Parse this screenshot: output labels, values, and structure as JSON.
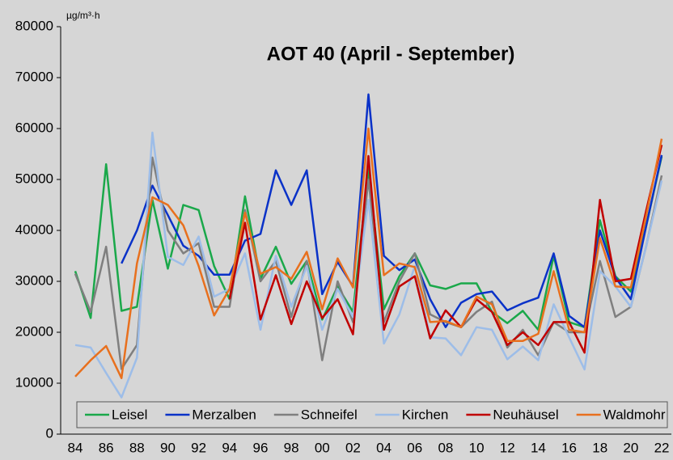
{
  "chart_data": {
    "type": "line",
    "title": "AOT 40 (April - September)",
    "y_unit": "µg/m³·h",
    "categories": [
      "84",
      null,
      "86",
      null,
      "88",
      null,
      "90",
      null,
      "92",
      null,
      "94",
      null,
      "96",
      null,
      "98",
      null,
      "00",
      null,
      "02",
      null,
      "04",
      null,
      "06",
      null,
      "08",
      null,
      "10",
      null,
      "12",
      null,
      "14",
      null,
      "16",
      null,
      "18",
      null,
      "20",
      null,
      "22"
    ],
    "ylim": [
      0,
      80000
    ],
    "yticks": [
      0,
      10000,
      20000,
      30000,
      40000,
      50000,
      60000,
      70000,
      80000
    ],
    "grid": false,
    "legend": "bottom",
    "series": [
      {
        "name": "Leisel",
        "color": "#1aa84a",
        "values": [
          32000,
          22800,
          53000,
          24200,
          25000,
          46000,
          32500,
          45000,
          44000,
          33000,
          26500,
          46700,
          30500,
          36800,
          29500,
          34000,
          22500,
          29000,
          24000,
          52000,
          24500,
          31000,
          35500,
          29200,
          28500,
          29600,
          29600,
          24000,
          21800,
          24200,
          20500,
          35000,
          22000,
          21000,
          42000,
          31000,
          28000,
          41000,
          54500
        ]
      },
      {
        "name": "Merzalben",
        "color": "#0a32c8",
        "values": [
          null,
          null,
          null,
          33500,
          40000,
          48800,
          43000,
          37000,
          35000,
          31300,
          31300,
          38000,
          39300,
          51800,
          45000,
          51800,
          27500,
          33800,
          29000,
          66700,
          35000,
          32200,
          34300,
          26500,
          21000,
          25800,
          27500,
          28000,
          24300,
          25700,
          26800,
          35500,
          23200,
          21000,
          40000,
          30800,
          26500,
          41000,
          54800
        ]
      },
      {
        "name": "Schneifel",
        "color": "#7f7f7f",
        "values": [
          31500,
          24000,
          36800,
          12800,
          17500,
          54300,
          40000,
          35500,
          37500,
          25000,
          25000,
          44000,
          30000,
          34000,
          23000,
          34000,
          14500,
          30000,
          22000,
          50000,
          22000,
          30000,
          35500,
          23500,
          22000,
          21000,
          24000,
          26000,
          17000,
          20500,
          15500,
          22000,
          20000,
          20000,
          34000,
          23000,
          25000,
          37000,
          50800
        ]
      },
      {
        "name": "Kirchen",
        "color": "#9dbde8",
        "values": [
          17500,
          17000,
          12000,
          7200,
          15000,
          59200,
          34800,
          33200,
          38800,
          27000,
          28500,
          35500,
          20500,
          35000,
          25000,
          33000,
          20500,
          28500,
          23000,
          46000,
          17800,
          23500,
          33000,
          19000,
          18800,
          15500,
          21000,
          20500,
          14700,
          17200,
          14500,
          25500,
          19000,
          12700,
          32000,
          29000,
          25000,
          37000,
          49800
        ]
      },
      {
        "name": "Neuhäusel",
        "color": "#c00000",
        "values": [
          null,
          null,
          null,
          null,
          null,
          null,
          null,
          null,
          null,
          null,
          26500,
          41500,
          22500,
          31200,
          21600,
          30000,
          22800,
          26500,
          19600,
          54600,
          20500,
          29000,
          31000,
          18800,
          24300,
          21000,
          26500,
          24000,
          17500,
          20000,
          17500,
          22000,
          22000,
          16000,
          46000,
          30000,
          30500,
          44000,
          56800
        ]
      },
      {
        "name": "Waldmohr",
        "color": "#e8701e",
        "values": [
          11300,
          14500,
          17300,
          11000,
          33500,
          46500,
          45000,
          41000,
          33000,
          23300,
          28500,
          43500,
          31500,
          32800,
          30500,
          35800,
          24500,
          34500,
          28800,
          60000,
          31200,
          33500,
          32800,
          22000,
          22200,
          21000,
          27000,
          25500,
          18300,
          18300,
          19700,
          32000,
          20500,
          20000,
          38500,
          29000,
          28800,
          43000,
          58000
        ]
      }
    ]
  }
}
